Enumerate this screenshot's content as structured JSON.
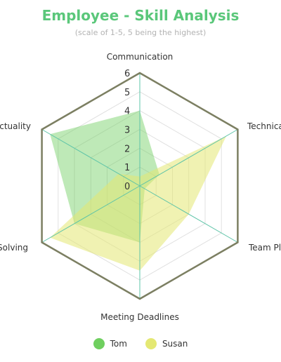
{
  "chart_data": {
    "type": "radar",
    "title": "Employee - Skill Analysis",
    "subtitle": "(scale of 1-5, 5 being the highest)",
    "categories": [
      "Communication",
      "Technical",
      "Team Player",
      "Meeting Deadlines",
      "Problem Solving",
      "Punctuality"
    ],
    "r_ticks": [
      0,
      1,
      2,
      3,
      4,
      5,
      6
    ],
    "rlim": [
      0,
      6
    ],
    "legend_position": "bottom",
    "series": [
      {
        "name": "Tom",
        "values": [
          4,
          1.2,
          0.3,
          3,
          4,
          5.5
        ],
        "color": "#6fcf5f",
        "fill": "rgba(111,207,95,0.45)"
      },
      {
        "name": "Susan",
        "values": [
          0.5,
          5.3,
          3,
          4.5,
          5.5,
          1.3
        ],
        "color": "#e4e873",
        "fill": "rgba(228,232,115,0.55)"
      }
    ],
    "colors": {
      "title": "#5ac77a",
      "grid_outer": "#7c7f62",
      "spokes": "#5ec4a8",
      "grid_inner": "#e0e0e0"
    }
  }
}
